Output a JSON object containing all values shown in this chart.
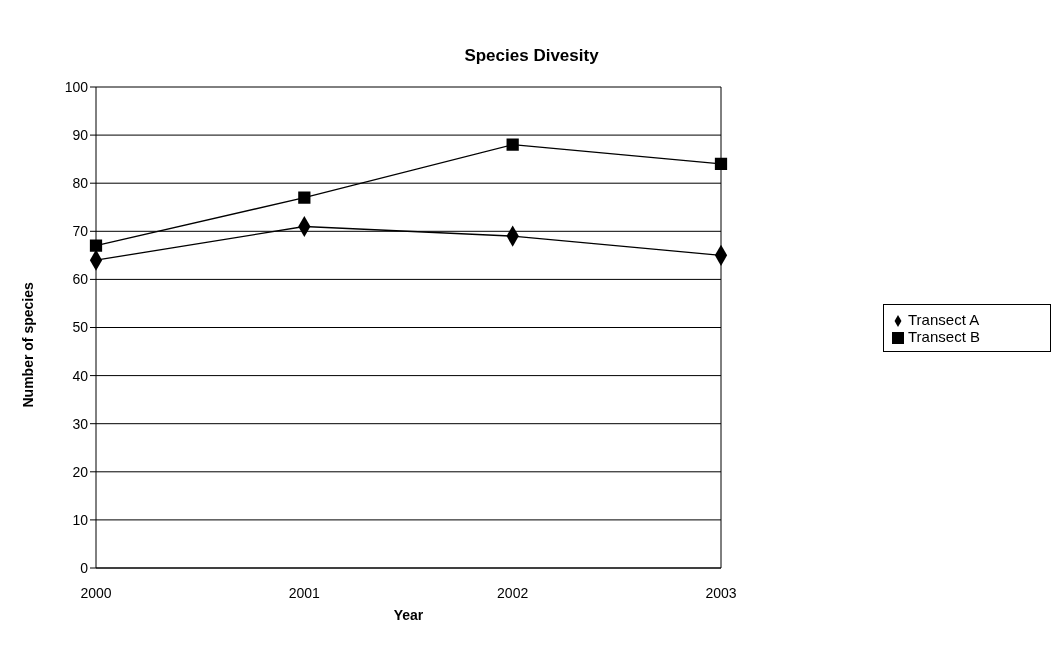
{
  "chart_data": {
    "type": "line",
    "title": "Species Divesity",
    "xlabel": "Year",
    "ylabel": "Number of species",
    "categories": [
      "2000",
      "2001",
      "2002",
      "2003"
    ],
    "series": [
      {
        "name": "Transect A",
        "color": "#000000",
        "marker": "diamond",
        "values": [
          64,
          71,
          69,
          65
        ]
      },
      {
        "name": "Transect B",
        "color": "#000000",
        "marker": "square",
        "values": [
          67,
          77,
          88,
          84
        ]
      }
    ],
    "ylim": [
      0,
      100
    ],
    "yticks": [
      0,
      10,
      20,
      30,
      40,
      50,
      60,
      70,
      80,
      90,
      100
    ],
    "grid": "y",
    "legend": "right",
    "line_style": "solid"
  }
}
